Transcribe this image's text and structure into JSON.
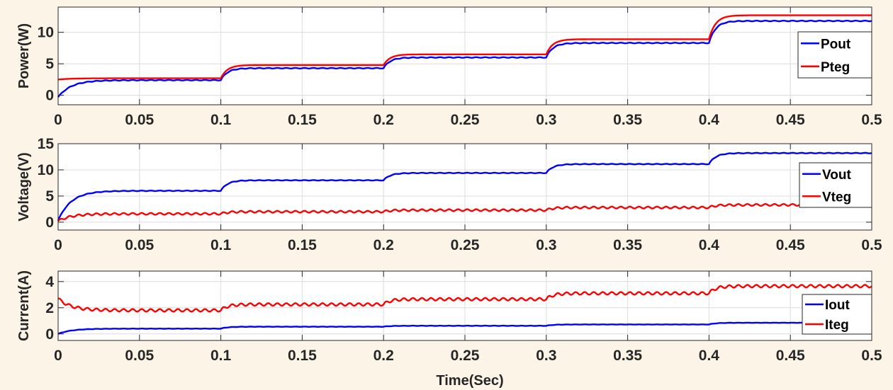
{
  "figure": {
    "background": "#fdf4e8",
    "xlabel": "Time(Sec)"
  },
  "chart_data": [
    {
      "type": "line",
      "ylabel": "Power(W)",
      "xlim": [
        0,
        0.5
      ],
      "ylim": [
        -1.5,
        14
      ],
      "xticks": [
        0,
        0.05,
        0.1,
        0.15,
        0.2,
        0.25,
        0.3,
        0.35,
        0.4,
        0.45,
        0.5
      ],
      "xtick_labels": [
        "0",
        "0.05",
        "0.1",
        "0.15",
        "0.2",
        "0.25",
        "0.3",
        "0.35",
        "0.4",
        "0.45",
        "0.5"
      ],
      "yticks": [
        0,
        5,
        10
      ],
      "ytick_labels": [
        "0",
        "5",
        "10"
      ],
      "grid": true,
      "legend_position": "right",
      "series": [
        {
          "name": "Pout",
          "color": "#0000ff",
          "start": -0.3,
          "levels": [
            2.4,
            4.3,
            6.0,
            8.3,
            11.8
          ],
          "ripple": 0.05
        },
        {
          "name": "Pteg",
          "color": "#ff0000",
          "start": 2.5,
          "levels": [
            2.7,
            4.8,
            6.5,
            8.9,
            12.7
          ],
          "ripple": 0
        }
      ]
    },
    {
      "type": "line",
      "ylabel": "Voltage(V)",
      "xlim": [
        0,
        0.5
      ],
      "ylim": [
        -1.5,
        15
      ],
      "xticks": [
        0,
        0.05,
        0.1,
        0.15,
        0.2,
        0.25,
        0.3,
        0.35,
        0.4,
        0.45,
        0.5
      ],
      "xtick_labels": [
        "0",
        "0.05",
        "0.1",
        "0.15",
        "0.2",
        "0.25",
        "0.3",
        "0.35",
        "0.4",
        "0.45",
        "0.5"
      ],
      "yticks": [
        0,
        5,
        10,
        15
      ],
      "ytick_labels": [
        "0",
        "5",
        "10",
        "15"
      ],
      "grid": true,
      "legend_position": "right",
      "series": [
        {
          "name": "Vout",
          "color": "#0000ff",
          "start": 0.3,
          "levels": [
            6.0,
            8.0,
            9.4,
            11.1,
            13.2
          ],
          "ripple": 0.05
        },
        {
          "name": "Vteg",
          "color": "#ff0000",
          "start": 0.2,
          "levels": [
            1.6,
            2.0,
            2.3,
            2.8,
            3.3
          ],
          "ripple": 0.18
        }
      ]
    },
    {
      "type": "line",
      "ylabel": "Current(A)",
      "xlim": [
        0,
        0.5
      ],
      "ylim": [
        -0.5,
        4.8
      ],
      "xticks": [
        0,
        0.05,
        0.1,
        0.15,
        0.2,
        0.25,
        0.3,
        0.35,
        0.4,
        0.45,
        0.5
      ],
      "xtick_labels": [
        "0",
        "0.05",
        "0.1",
        "0.15",
        "0.2",
        "0.25",
        "0.3",
        "0.35",
        "0.4",
        "0.45",
        "0.5"
      ],
      "yticks": [
        0,
        2,
        4
      ],
      "ytick_labels": [
        "0",
        "2",
        "4"
      ],
      "grid": true,
      "legend_position": "right",
      "series": [
        {
          "name": "Iout",
          "color": "#0000ff",
          "start": 0.0,
          "levels": [
            0.4,
            0.55,
            0.62,
            0.72,
            0.85
          ],
          "ripple": 0.01
        },
        {
          "name": "Iteg",
          "color": "#ff0000",
          "start": 2.7,
          "levels": [
            1.8,
            2.25,
            2.65,
            3.1,
            3.65
          ],
          "ripple": 0.1
        }
      ]
    }
  ]
}
